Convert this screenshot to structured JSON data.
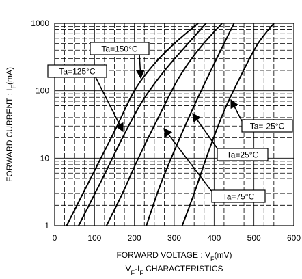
{
  "chart_data": {
    "type": "line",
    "title": "",
    "caption": {
      "main": "V",
      "sub1": "F",
      "mid": "-I",
      "sub2": "F",
      "rest": " CHARACTERISTICS"
    },
    "xlabel": {
      "main": "FORWARD VOLTAGE : V",
      "sub": "F",
      "unit": "(mV)"
    },
    "ylabel": {
      "main": "FORWARD CURRENT : I",
      "sub": "F",
      "unit": "(mA)"
    },
    "xlim": [
      0,
      600
    ],
    "ylim": [
      1,
      1000
    ],
    "yscale": "log",
    "grid": true,
    "x_ticks": [
      "0",
      "100",
      "200",
      "300",
      "400",
      "500",
      "600"
    ],
    "y_ticks": [
      "1",
      "10",
      "100",
      "1000"
    ],
    "series": [
      {
        "name": "Ta=150°C",
        "x": [
          30,
          90,
          150,
          200,
          250,
          300,
          360
        ],
        "y": [
          1,
          5,
          25,
          100,
          250,
          500,
          1000
        ]
      },
      {
        "name": "Ta=125°C",
        "x": [
          60,
          120,
          170,
          220,
          270,
          320,
          380
        ],
        "y": [
          1,
          5,
          20,
          70,
          180,
          400,
          1000
        ]
      },
      {
        "name": "Ta=75°C",
        "x": [
          130,
          170,
          210,
          260,
          310,
          360,
          420
        ],
        "y": [
          1,
          3,
          10,
          40,
          150,
          400,
          1000
        ]
      },
      {
        "name": "Ta=25°C",
        "x": [
          230,
          265,
          305,
          350,
          400,
          450
        ],
        "y": [
          1,
          4,
          15,
          60,
          250,
          1000
        ]
      },
      {
        "name": "Ta=-25°C",
        "x": [
          320,
          350,
          385,
          425,
          470,
          510,
          550
        ],
        "y": [
          1,
          3,
          12,
          50,
          180,
          500,
          1000
        ]
      }
    ],
    "annotations": [
      {
        "text": "Ta=150°C",
        "series": 0,
        "x": 200,
        "y": 120
      },
      {
        "text": "Ta=125°C",
        "series": 1,
        "x": 170,
        "y": 28
      },
      {
        "text": "Ta=75°C",
        "series": 2,
        "x": 255,
        "y": 37
      },
      {
        "text": "Ta=25°C",
        "series": 3,
        "x": 340,
        "y": 45
      },
      {
        "text": "Ta=-25°C",
        "series": 4,
        "x": 420,
        "y": 80
      }
    ]
  }
}
